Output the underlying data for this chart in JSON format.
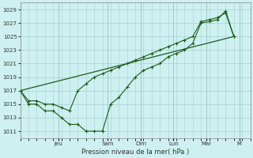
{
  "xlabel": "Pression niveau de la mer( hPa )",
  "bg_color": "#cef0f0",
  "grid_color": "#aacece",
  "line_color": "#1a5c1a",
  "ylim": [
    1010,
    1030
  ],
  "yticks": [
    1011,
    1013,
    1015,
    1017,
    1019,
    1021,
    1023,
    1025,
    1027,
    1029
  ],
  "xlim": [
    0,
    14.0
  ],
  "day_labels": [
    "Jeu",
    "Sam",
    "Dim",
    "Lun",
    "Mar",
    "M"
  ],
  "day_positions": [
    2.33,
    5.33,
    7.33,
    9.33,
    11.33,
    13.33
  ],
  "line1_x": [
    0.0,
    0.5,
    1.0,
    1.5,
    2.0,
    2.5,
    3.0,
    3.5,
    4.0,
    4.5,
    5.0,
    5.5,
    6.0,
    6.5,
    7.0,
    7.5,
    8.0,
    8.5,
    9.0,
    9.5,
    10.0,
    10.5,
    11.0,
    11.5,
    12.0,
    12.5,
    13.0
  ],
  "line1_y": [
    1017,
    1015,
    1015,
    1014,
    1014,
    1013,
    1012,
    1012,
    1011,
    1011,
    1011,
    1015,
    1016,
    1017.5,
    1019,
    1020,
    1020.5,
    1021,
    1022,
    1022.5,
    1023,
    1024,
    1027,
    1027.2,
    1027.5,
    1028.8,
    1025
  ],
  "line2_x": [
    0.0,
    0.5,
    1.0,
    1.5,
    2.0,
    2.5,
    3.0,
    3.5,
    4.0,
    4.5,
    5.0,
    5.5,
    6.0,
    6.5,
    7.0,
    7.5,
    8.0,
    8.5,
    9.0,
    9.5,
    10.0,
    10.5,
    11.0,
    11.5,
    12.0,
    12.5,
    13.0
  ],
  "line2_y": [
    1017,
    1015.5,
    1015.5,
    1015,
    1015,
    1014.5,
    1014,
    1017,
    1018,
    1019,
    1019.5,
    1020,
    1020.5,
    1021,
    1021.5,
    1022,
    1022.5,
    1023,
    1023.5,
    1024,
    1024.5,
    1025,
    1027.2,
    1027.5,
    1027.8,
    1028.5,
    1025
  ],
  "line3_x": [
    0.0,
    13.0
  ],
  "line3_y": [
    1017,
    1025
  ]
}
